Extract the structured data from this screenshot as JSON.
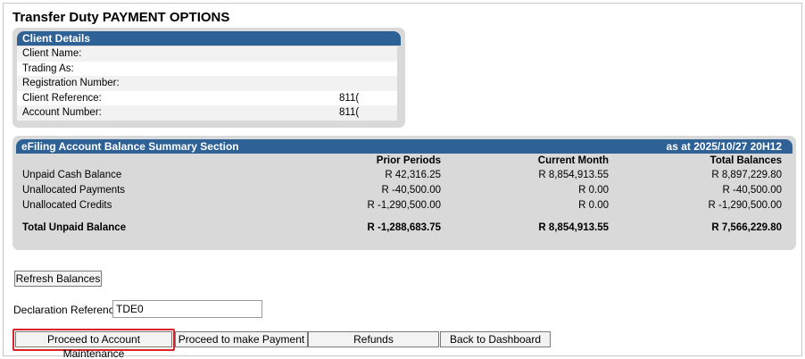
{
  "page": {
    "title": "Transfer Duty PAYMENT OPTIONS"
  },
  "client_details": {
    "header": "Client Details",
    "rows": [
      {
        "label": "Client Name:",
        "value": ""
      },
      {
        "label": "Trading As:",
        "value": ""
      },
      {
        "label": "Registration Number:",
        "value": ""
      },
      {
        "label": "Client Reference:",
        "value": "811("
      },
      {
        "label": "Account Number:",
        "value": "811("
      }
    ]
  },
  "balance_summary": {
    "header": "eFiling Account Balance Summary Section",
    "as_at": "as at 2025/10/27 20H12",
    "columns": [
      "",
      "Prior Periods",
      "Current Month",
      "Total Balances"
    ],
    "rows": [
      {
        "label": "Unpaid Cash Balance",
        "prior": "R 42,316.25",
        "current": "R 8,854,913.55",
        "total": "R 8,897,229.80"
      },
      {
        "label": "Unallocated Payments",
        "prior": "R -40,500.00",
        "current": "R 0.00",
        "total": "R -40,500.00"
      },
      {
        "label": "Unallocated Credits",
        "prior": "R -1,290,500.00",
        "current": "R 0.00",
        "total": "R -1,290,500.00"
      }
    ],
    "total_row": {
      "label": "Total Unpaid Balance",
      "prior": "R -1,288,683.75",
      "current": "R 8,854,913.55",
      "total": "R 7,566,229.80"
    }
  },
  "actions": {
    "refresh_label": "Refresh Balances",
    "declaration_label": "Declaration Reference",
    "declaration_value": "TDE0",
    "buttons": {
      "account_maintenance": "Proceed to Account Maintenance",
      "make_payment": "Proceed to make Payment",
      "refunds": "Refunds",
      "dashboard": "Back to Dashboard"
    }
  },
  "colors": {
    "header_blue": "#2e6196",
    "panel_grey": "#d9d9d9",
    "highlight_red": "#d8232a"
  }
}
